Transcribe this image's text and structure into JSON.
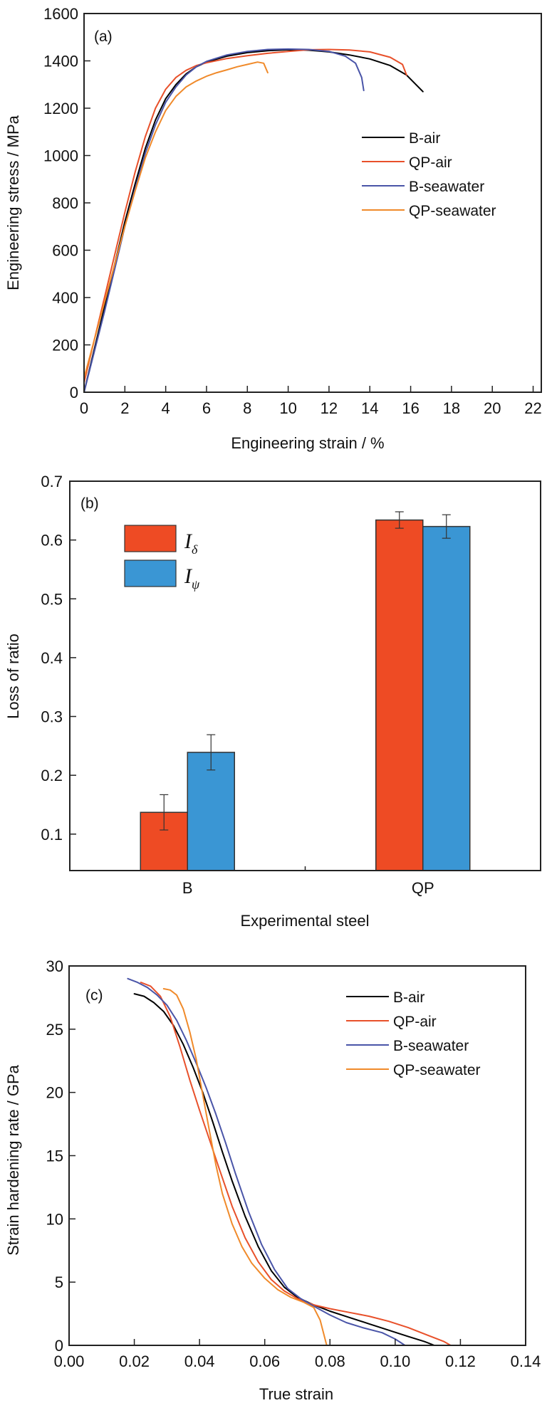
{
  "chart_data": [
    {
      "id": "a",
      "type": "line",
      "panel_label": "(a)",
      "xlabel": "Engineering strain / %",
      "ylabel": "Engineering stress / MPa",
      "xlim": [
        0,
        22.4
      ],
      "ylim": [
        0,
        1600
      ],
      "xticks": [
        0,
        2,
        4,
        6,
        8,
        10,
        12,
        14,
        16,
        18,
        20,
        22
      ],
      "yticks": [
        0,
        200,
        400,
        600,
        800,
        1000,
        1200,
        1400,
        1600
      ],
      "grid": false,
      "legend_position": "right-middle",
      "series": [
        {
          "name": "B-air",
          "color": "#000000",
          "x": [
            0,
            0.5,
            1.0,
            1.5,
            2.0,
            2.5,
            3.0,
            3.5,
            4.0,
            4.5,
            5.0,
            5.5,
            6.0,
            7.0,
            8.0,
            9.0,
            10.0,
            11.0,
            12.0,
            13.0,
            14.0,
            15.0,
            15.8,
            16.6
          ],
          "y": [
            0,
            180,
            360,
            540,
            720,
            880,
            1030,
            1150,
            1240,
            1300,
            1345,
            1375,
            1395,
            1420,
            1435,
            1443,
            1447,
            1445,
            1438,
            1425,
            1408,
            1380,
            1340,
            1270
          ]
        },
        {
          "name": "QP-air",
          "color": "#e8502a",
          "x": [
            0,
            0.5,
            1.0,
            1.5,
            2.0,
            2.5,
            3.0,
            3.5,
            4.0,
            4.5,
            5.0,
            5.5,
            6.0,
            7.0,
            8.0,
            9.0,
            10.0,
            11.0,
            12.0,
            13.0,
            14.0,
            15.0,
            15.6,
            15.8
          ],
          "y": [
            40,
            220,
            400,
            580,
            760,
            930,
            1080,
            1200,
            1280,
            1330,
            1360,
            1380,
            1392,
            1410,
            1422,
            1432,
            1440,
            1447,
            1448,
            1446,
            1438,
            1415,
            1385,
            1340
          ]
        },
        {
          "name": "B-seawater",
          "color": "#4a55a8",
          "x": [
            0,
            0.5,
            1.0,
            1.5,
            2.0,
            2.5,
            3.0,
            3.5,
            4.0,
            4.5,
            5.0,
            5.5,
            6.0,
            7.0,
            8.0,
            9.0,
            10.0,
            11.0,
            12.0,
            12.8,
            13.3,
            13.6,
            13.7
          ],
          "y": [
            0,
            170,
            340,
            520,
            700,
            860,
            1010,
            1130,
            1225,
            1290,
            1340,
            1375,
            1398,
            1425,
            1440,
            1448,
            1450,
            1448,
            1440,
            1420,
            1390,
            1330,
            1275
          ]
        },
        {
          "name": "QP-seawater",
          "color": "#f08a2a",
          "x": [
            0,
            0.5,
            1.0,
            1.5,
            2.0,
            2.5,
            3.0,
            3.5,
            4.0,
            4.5,
            5.0,
            5.5,
            6.0,
            6.5,
            7.0,
            7.5,
            8.0,
            8.5,
            8.8,
            9.0
          ],
          "y": [
            60,
            220,
            380,
            540,
            700,
            850,
            990,
            1100,
            1190,
            1250,
            1290,
            1315,
            1335,
            1350,
            1362,
            1375,
            1385,
            1395,
            1390,
            1350
          ]
        }
      ]
    },
    {
      "id": "b",
      "type": "bar",
      "panel_label": "(b)",
      "xlabel": "Experimental steel",
      "ylabel": "Loss of ratio",
      "categories": [
        "B",
        "QP"
      ],
      "ylim": [
        0.038,
        0.7
      ],
      "yticks": [
        0.1,
        0.2,
        0.3,
        0.4,
        0.5,
        0.6,
        0.7
      ],
      "grid": false,
      "legend_position": "top-left",
      "series": [
        {
          "name": "I",
          "subscript": "δ",
          "color": "#ee4b24",
          "values": [
            0.137,
            0.634
          ],
          "errors": [
            0.03,
            0.014
          ]
        },
        {
          "name": "I",
          "subscript": "ψ",
          "color": "#3a96d4",
          "values": [
            0.239,
            0.623
          ],
          "errors": [
            0.03,
            0.02
          ]
        }
      ]
    },
    {
      "id": "c",
      "type": "line",
      "panel_label": "(c)",
      "xlabel": "True strain",
      "ylabel": "Strain hardening rate / GPa",
      "xlim": [
        0,
        0.14
      ],
      "ylim": [
        0,
        30
      ],
      "xticks": [
        "0.00",
        "0.02",
        "0.04",
        "0.06",
        "0.08",
        "0.10",
        "0.12",
        "0.14"
      ],
      "yticks": [
        0,
        5,
        10,
        15,
        20,
        25,
        30
      ],
      "grid": false,
      "legend_position": "top-right",
      "series": [
        {
          "name": "B-air",
          "color": "#000000",
          "x": [
            0.02,
            0.023,
            0.026,
            0.029,
            0.032,
            0.035,
            0.038,
            0.041,
            0.044,
            0.047,
            0.05,
            0.054,
            0.058,
            0.062,
            0.066,
            0.07,
            0.075,
            0.08,
            0.086,
            0.092,
            0.098,
            0.104,
            0.109,
            0.112
          ],
          "y": [
            27.8,
            27.6,
            27.1,
            26.4,
            25.3,
            23.8,
            22.0,
            20.0,
            17.7,
            15.3,
            13.0,
            10.2,
            7.8,
            5.9,
            4.6,
            3.8,
            3.2,
            2.7,
            2.2,
            1.7,
            1.2,
            0.7,
            0.3,
            0.0
          ]
        },
        {
          "name": "QP-air",
          "color": "#e8502a",
          "x": [
            0.022,
            0.025,
            0.028,
            0.031,
            0.034,
            0.037,
            0.04,
            0.043,
            0.046,
            0.05,
            0.054,
            0.058,
            0.062,
            0.066,
            0.07,
            0.075,
            0.08,
            0.086,
            0.092,
            0.098,
            0.104,
            0.11,
            0.115,
            0.117
          ],
          "y": [
            28.7,
            28.4,
            27.6,
            26.0,
            23.6,
            21.0,
            18.6,
            16.3,
            14.0,
            11.0,
            8.5,
            6.6,
            5.2,
            4.3,
            3.7,
            3.2,
            2.9,
            2.6,
            2.3,
            1.9,
            1.4,
            0.8,
            0.3,
            0.0
          ]
        },
        {
          "name": "B-seawater",
          "color": "#4a55a8",
          "x": [
            0.018,
            0.021,
            0.024,
            0.027,
            0.03,
            0.033,
            0.036,
            0.039,
            0.042,
            0.045,
            0.048,
            0.051,
            0.055,
            0.059,
            0.063,
            0.067,
            0.071,
            0.075,
            0.08,
            0.085,
            0.09,
            0.096,
            0.1,
            0.103
          ],
          "y": [
            29.0,
            28.7,
            28.3,
            27.7,
            26.9,
            25.7,
            24.1,
            22.3,
            20.4,
            18.3,
            16.0,
            13.6,
            10.6,
            8.0,
            6.0,
            4.5,
            3.7,
            3.1,
            2.4,
            1.8,
            1.4,
            1.0,
            0.5,
            0.0
          ]
        },
        {
          "name": "QP-seawater",
          "color": "#f08a2a",
          "x": [
            0.029,
            0.031,
            0.033,
            0.035,
            0.037,
            0.039,
            0.041,
            0.043,
            0.045,
            0.047,
            0.05,
            0.053,
            0.056,
            0.06,
            0.064,
            0.068,
            0.072,
            0.075,
            0.077,
            0.078,
            0.079
          ],
          "y": [
            28.2,
            28.1,
            27.7,
            26.6,
            24.8,
            22.6,
            19.8,
            17.0,
            14.3,
            12.0,
            9.6,
            7.8,
            6.5,
            5.3,
            4.4,
            3.8,
            3.4,
            3.0,
            2.0,
            1.0,
            0.0
          ]
        }
      ]
    }
  ]
}
